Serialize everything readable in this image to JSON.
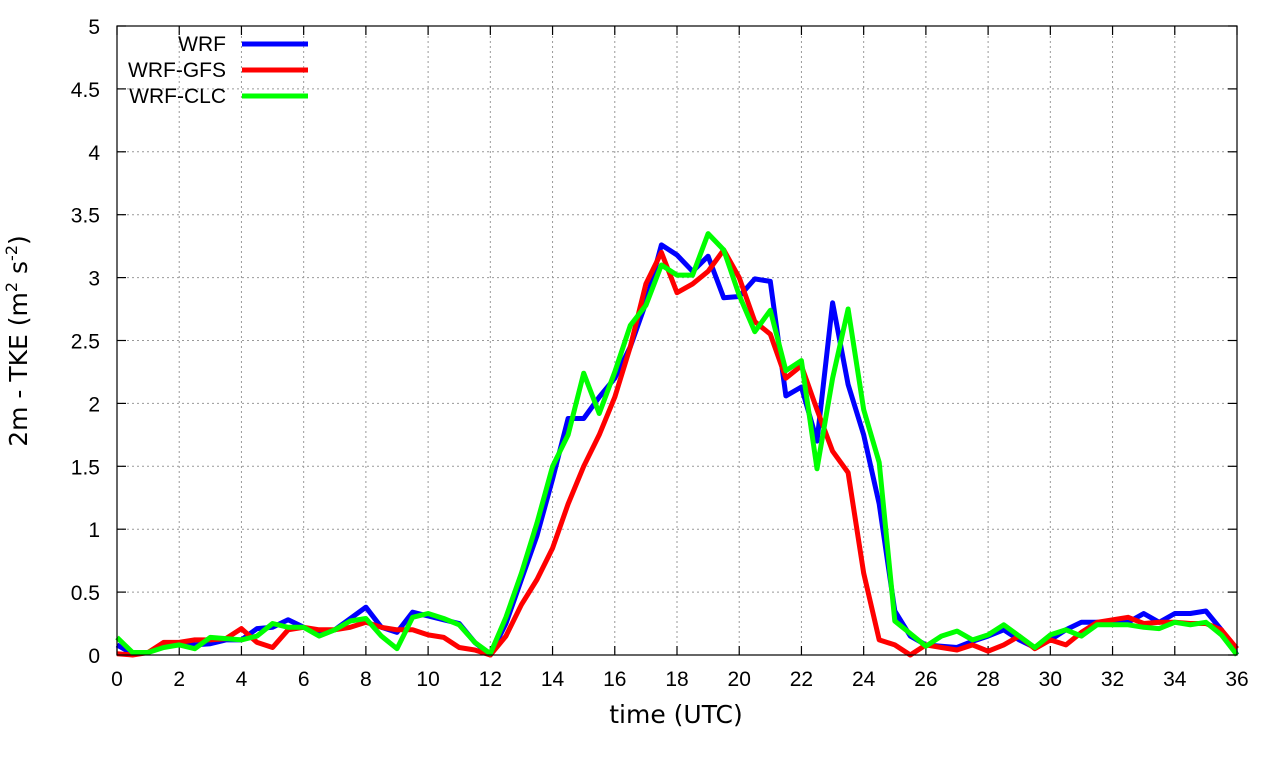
{
  "chart_data": {
    "type": "line",
    "xlabel": "time (UTC)",
    "ylabel_parts": [
      "2m - TKE (m",
      "2",
      " s",
      "-2",
      ")"
    ],
    "xlim": [
      0,
      36
    ],
    "ylim": [
      0,
      5
    ],
    "xticks": [
      "0",
      "2",
      "4",
      "6",
      "8",
      "10",
      "12",
      "14",
      "16",
      "18",
      "20",
      "22",
      "24",
      "26",
      "28",
      "30",
      "32",
      "34",
      "36"
    ],
    "yticks": [
      "0",
      "0.5",
      "1",
      "1.5",
      "2",
      "2.5",
      "3",
      "3.5",
      "4",
      "4.5",
      "5"
    ],
    "grid": true,
    "legend_position": "top-left",
    "x": [
      0,
      0.5,
      1,
      1.5,
      2,
      2.5,
      3,
      3.5,
      4,
      4.5,
      5,
      5.5,
      6,
      6.5,
      7,
      7.5,
      8,
      8.5,
      9,
      9.5,
      10,
      10.5,
      11,
      11.5,
      12,
      12.5,
      13,
      13.5,
      14,
      14.5,
      15,
      15.5,
      16,
      16.5,
      17,
      17.5,
      18,
      18.5,
      19,
      19.5,
      20,
      20.5,
      21,
      21.5,
      22,
      22.5,
      23,
      23.5,
      24,
      24.5,
      25,
      25.5,
      26,
      26.5,
      27,
      27.5,
      28,
      28.5,
      29,
      29.5,
      30,
      30.5,
      31,
      31.5,
      32,
      32.5,
      33,
      33.5,
      34,
      34.5,
      35,
      35.5,
      36
    ],
    "series": [
      {
        "name": "WRF",
        "color": "#0000ff",
        "values": [
          0.08,
          0.01,
          0.02,
          0.08,
          0.09,
          0.08,
          0.09,
          0.12,
          0.12,
          0.21,
          0.22,
          0.28,
          0.22,
          0.16,
          0.2,
          0.29,
          0.38,
          0.22,
          0.18,
          0.34,
          0.31,
          0.28,
          0.25,
          0.1,
          0.0,
          0.25,
          0.6,
          0.95,
          1.4,
          1.88,
          1.88,
          2.05,
          2.2,
          2.45,
          2.8,
          3.26,
          3.18,
          3.05,
          3.17,
          2.84,
          2.85,
          2.99,
          2.97,
          2.06,
          2.13,
          1.7,
          2.8,
          2.15,
          1.75,
          1.2,
          0.35,
          0.15,
          0.08,
          0.07,
          0.06,
          0.11,
          0.15,
          0.2,
          0.12,
          0.06,
          0.12,
          0.2,
          0.26,
          0.26,
          0.25,
          0.26,
          0.33,
          0.26,
          0.33,
          0.33,
          0.35,
          0.2,
          0.0
        ]
      },
      {
        "name": "WRF-GFS",
        "color": "#ff0000",
        "values": [
          0.01,
          0.0,
          0.02,
          0.1,
          0.1,
          0.12,
          0.12,
          0.13,
          0.21,
          0.1,
          0.06,
          0.2,
          0.22,
          0.2,
          0.2,
          0.22,
          0.26,
          0.22,
          0.2,
          0.2,
          0.16,
          0.14,
          0.06,
          0.04,
          0.0,
          0.15,
          0.4,
          0.6,
          0.85,
          1.2,
          1.5,
          1.75,
          2.05,
          2.45,
          2.95,
          3.2,
          2.88,
          2.95,
          3.05,
          3.22,
          3.0,
          2.65,
          2.55,
          2.2,
          2.3,
          1.95,
          1.62,
          1.45,
          0.65,
          0.12,
          0.08,
          0.0,
          0.08,
          0.06,
          0.04,
          0.08,
          0.03,
          0.08,
          0.15,
          0.05,
          0.12,
          0.08,
          0.18,
          0.26,
          0.28,
          0.3,
          0.25,
          0.26,
          0.26,
          0.25,
          0.25,
          0.2,
          0.05
        ]
      },
      {
        "name": "WRF-CLC",
        "color": "#00ff00",
        "values": [
          0.14,
          0.02,
          0.02,
          0.06,
          0.08,
          0.05,
          0.14,
          0.13,
          0.12,
          0.15,
          0.25,
          0.22,
          0.22,
          0.15,
          0.2,
          0.27,
          0.29,
          0.15,
          0.05,
          0.3,
          0.33,
          0.29,
          0.24,
          0.1,
          0.01,
          0.3,
          0.65,
          1.05,
          1.5,
          1.75,
          2.24,
          1.92,
          2.25,
          2.62,
          2.78,
          3.1,
          3.02,
          3.02,
          3.35,
          3.22,
          2.86,
          2.57,
          2.74,
          2.26,
          2.34,
          1.48,
          2.2,
          2.75,
          1.95,
          1.53,
          0.27,
          0.17,
          0.07,
          0.15,
          0.19,
          0.12,
          0.16,
          0.24,
          0.15,
          0.06,
          0.16,
          0.2,
          0.15,
          0.24,
          0.24,
          0.24,
          0.22,
          0.21,
          0.26,
          0.24,
          0.26,
          0.16,
          0.0
        ]
      }
    ]
  }
}
